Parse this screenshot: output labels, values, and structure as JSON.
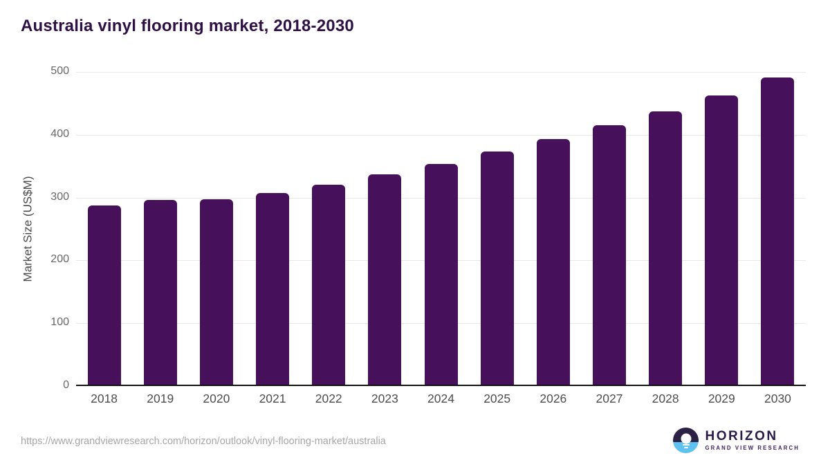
{
  "page": {
    "title": "Australia vinyl flooring market, 2018-2030"
  },
  "chart_data": {
    "type": "bar",
    "title": "Australia vinyl flooring market, 2018-2030",
    "categories": [
      "2018",
      "2019",
      "2020",
      "2021",
      "2022",
      "2023",
      "2024",
      "2025",
      "2026",
      "2027",
      "2028",
      "2029",
      "2030"
    ],
    "values": [
      287,
      296,
      297,
      307,
      320,
      337,
      354,
      373,
      393,
      415,
      437,
      463,
      491
    ],
    "xlabel": "",
    "ylabel": "Market Size (US$M)",
    "ylim": [
      0,
      500
    ],
    "yticks": [
      0,
      100,
      200,
      300,
      400,
      500
    ],
    "grid": true,
    "legend_position": "none",
    "bar_color": "#46115a"
  },
  "footer": {
    "source_url": "https://www.grandviewresearch.com/horizon/outlook/vinyl-flooring-market/australia",
    "logo_title": "HORIZON",
    "logo_subtitle": "GRAND VIEW RESEARCH"
  },
  "colors": {
    "bar": "#46115a",
    "title_text": "#2e1045",
    "gridline": "#e8e8e8",
    "axis_line": "#111111",
    "x_tick_text": "#4d4d4d",
    "y_tick_text": "#666666",
    "y_axis_title_text": "#4a4a4a",
    "url_text": "#a6a6a6",
    "logo_dark": "#2b2145",
    "logo_blue": "#5ec1ef"
  }
}
